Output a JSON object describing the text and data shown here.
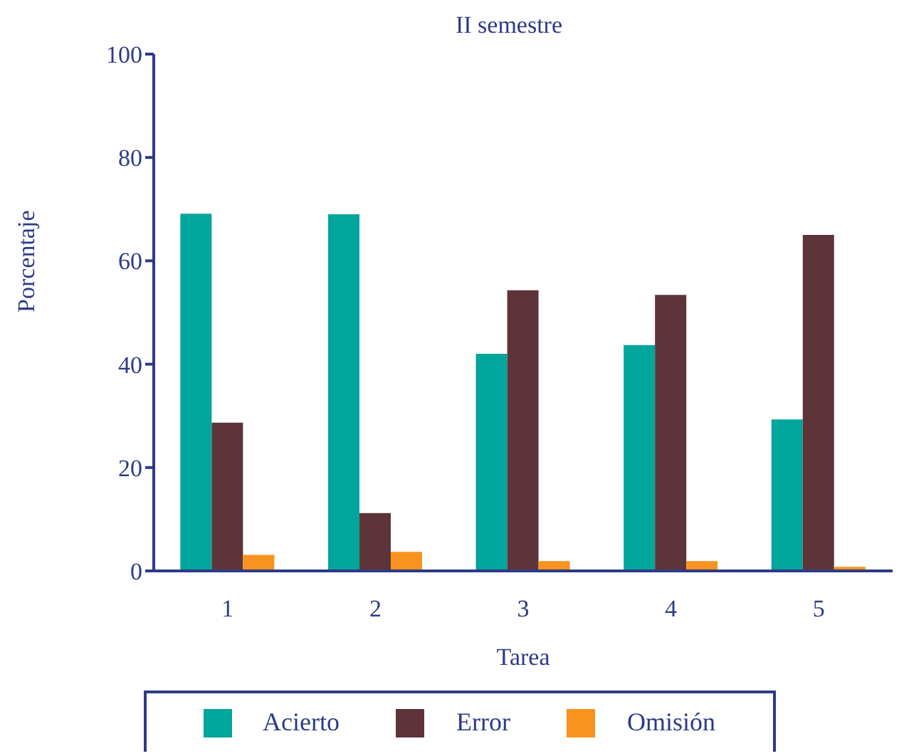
{
  "chart_data": {
    "type": "bar",
    "title": "II semestre",
    "xlabel": "Tarea",
    "ylabel": "Porcentaje",
    "categories": [
      "1",
      "2",
      "3",
      "4",
      "5"
    ],
    "series": [
      {
        "name": "Acierto",
        "color": "#00a59b",
        "values": [
          69.1,
          69,
          42,
          43.7,
          29.3
        ]
      },
      {
        "name": "Error",
        "color": "#5c343a",
        "values": [
          28.7,
          11.2,
          54.3,
          53.4,
          65
        ]
      },
      {
        "name": "Omisión",
        "color": "#f7931e",
        "values": [
          3.1,
          3.7,
          1.9,
          1.9,
          0.8
        ]
      }
    ],
    "ylim": [
      0,
      100
    ],
    "yticks": [
      0,
      20,
      40,
      60,
      80,
      100
    ],
    "grid": false,
    "legend": "bottom"
  }
}
